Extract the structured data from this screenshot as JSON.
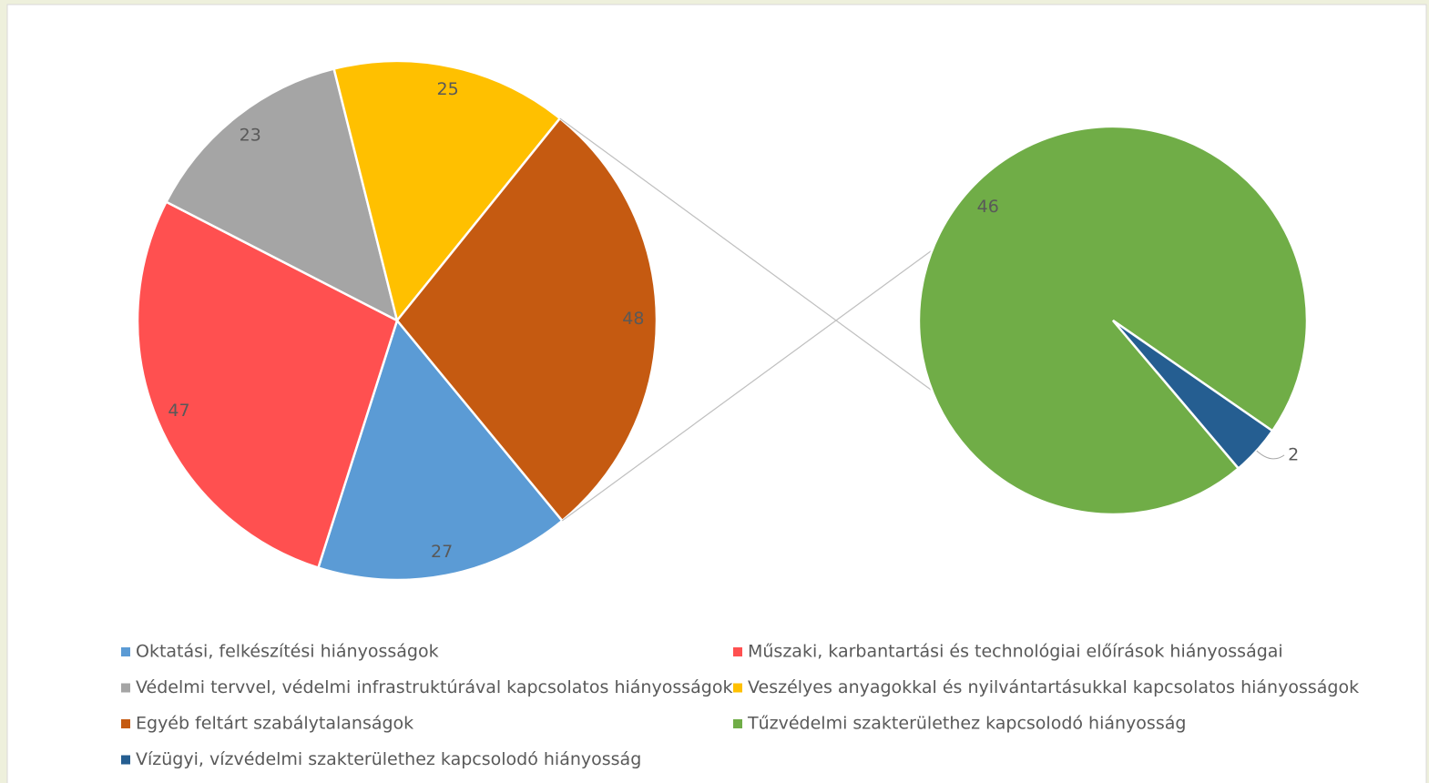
{
  "chart_data": {
    "type": "pie-of-pie",
    "categories": [
      "Oktatási, felkészítési hiányosságok",
      "Műszaki, karbantartási és technológiai előírások hiányosságai",
      "Védelmi tervvel, védelmi infrastruktúrával kapcsolatos hiányosságok",
      "Veszélyes anyagokkal és nyilvántartásukkal kapcsolatos hiányosságok",
      "Egyéb feltárt szabálytalanságok"
    ],
    "values": [
      27,
      47,
      23,
      25,
      48
    ],
    "colors": [
      "#5b9bd5",
      "#ff5050",
      "#a5a5a5",
      "#ffc000",
      "#c55a11"
    ],
    "secondary": {
      "categories": [
        "Tűzvédelmi szakterülethez kapcsolodó hiányosság",
        "Vízügyi, vízvédelmi szakterülethez kapcsolodó hiányosság"
      ],
      "values": [
        46,
        2
      ],
      "colors": [
        "#70ad47",
        "#255e91"
      ]
    },
    "legend": "bottom"
  }
}
